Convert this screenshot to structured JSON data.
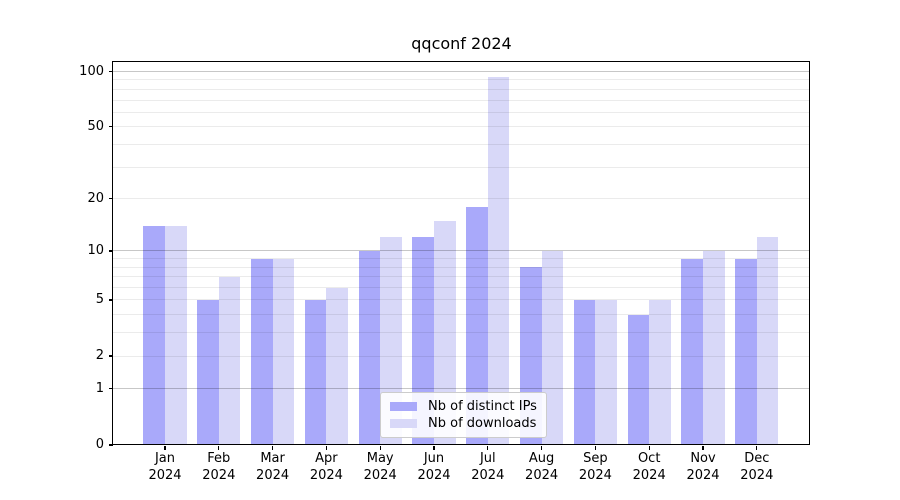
{
  "figure": {
    "background": "#ffffff"
  },
  "chart_data": {
    "type": "bar",
    "title": "qqconf 2024",
    "categories": [
      "Jan",
      "Feb",
      "Mar",
      "Apr",
      "May",
      "Jun",
      "Jul",
      "Aug",
      "Sep",
      "Oct",
      "Nov",
      "Dec"
    ],
    "year_label": "2024",
    "series": [
      {
        "name": "Nb of distinct IPs",
        "color": "#a9a9fa",
        "values": [
          14,
          5,
          9,
          5,
          10,
          12,
          18,
          8,
          5,
          4,
          9,
          9
        ]
      },
      {
        "name": "Nb of downloads",
        "color": "#d8d8f8",
        "values": [
          14,
          7,
          9,
          6,
          12,
          15,
          93,
          10,
          5,
          5,
          10,
          12
        ]
      }
    ],
    "xlabel": "",
    "ylabel": "",
    "yscale": "log1p",
    "ylim": [
      0,
      110
    ],
    "y_ticks": [
      0,
      1,
      2,
      5,
      10,
      20,
      50,
      100
    ],
    "major_gridlines": [
      1,
      10,
      100
    ],
    "minor_gridlines": [
      2,
      3,
      4,
      5,
      6,
      7,
      8,
      9,
      20,
      30,
      40,
      50,
      60,
      70,
      80,
      90
    ],
    "grid": "on",
    "legend_position": "lower center"
  }
}
